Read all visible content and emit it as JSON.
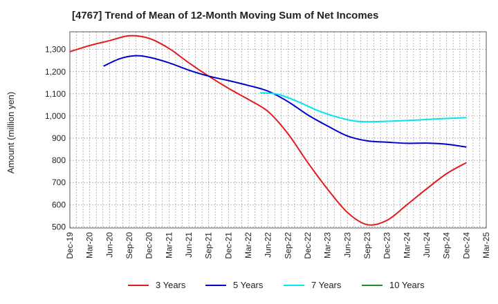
{
  "title": "[4767]  Trend of Mean of 12-Month Moving Sum of Net Incomes",
  "chart_data": {
    "type": "line",
    "ylabel": "Amount (million yen)",
    "xlabel": "",
    "ylim": [
      495,
      1380
    ],
    "yticks": [
      500,
      600,
      700,
      800,
      900,
      1000,
      1100,
      1200,
      1300
    ],
    "ytick_labels": [
      "500",
      "600",
      "700",
      "800",
      "900",
      "1,000",
      "1,100",
      "1,200",
      "1,300"
    ],
    "xtick_labels": [
      "Dec-19",
      "Mar-20",
      "Jun-20",
      "Sep-20",
      "Dec-20",
      "Mar-21",
      "Jun-21",
      "Sep-21",
      "Dec-21",
      "Mar-22",
      "Jun-22",
      "Sep-22",
      "Dec-22",
      "Mar-23",
      "Jun-23",
      "Sep-23",
      "Dec-23",
      "Mar-24",
      "Jun-24",
      "Sep-24",
      "Dec-24",
      "Mar-25"
    ],
    "grid": true,
    "series": [
      {
        "name": "3 Years",
        "color": "#e31a1c",
        "points": [
          [
            0,
            1290
          ],
          [
            1,
            1318
          ],
          [
            2,
            1340
          ],
          [
            3,
            1362
          ],
          [
            4,
            1350
          ],
          [
            5,
            1305
          ],
          [
            6,
            1240
          ],
          [
            7,
            1180
          ],
          [
            8,
            1125
          ],
          [
            9,
            1075
          ],
          [
            10,
            1020
          ],
          [
            11,
            920
          ],
          [
            12,
            790
          ],
          [
            13,
            670
          ],
          [
            14,
            565
          ],
          [
            15,
            510
          ],
          [
            16,
            530
          ],
          [
            17,
            600
          ],
          [
            18,
            672
          ],
          [
            19,
            740
          ],
          [
            20,
            790
          ]
        ]
      },
      {
        "name": "5 Years",
        "color": "#0000cc",
        "points": [
          [
            1.7,
            1225
          ],
          [
            2.5,
            1258
          ],
          [
            3.3,
            1272
          ],
          [
            4,
            1265
          ],
          [
            5,
            1240
          ],
          [
            6,
            1207
          ],
          [
            7,
            1180
          ],
          [
            8,
            1160
          ],
          [
            9,
            1138
          ],
          [
            10,
            1112
          ],
          [
            11,
            1065
          ],
          [
            12,
            1005
          ],
          [
            13,
            955
          ],
          [
            14,
            910
          ],
          [
            15,
            888
          ],
          [
            16,
            882
          ],
          [
            17,
            877
          ],
          [
            18,
            878
          ],
          [
            19,
            873
          ],
          [
            20,
            860
          ]
        ]
      },
      {
        "name": "7 Years",
        "color": "#00e5ee",
        "points": [
          [
            9.6,
            1105
          ],
          [
            10.5,
            1098
          ],
          [
            11.5,
            1065
          ],
          [
            12.5,
            1025
          ],
          [
            13.5,
            995
          ],
          [
            14.5,
            976
          ],
          [
            15.5,
            975
          ],
          [
            16.5,
            978
          ],
          [
            17.5,
            982
          ],
          [
            18.5,
            987
          ],
          [
            19.5,
            991
          ],
          [
            20,
            993
          ]
        ]
      },
      {
        "name": "10 Years",
        "color": "#228b22",
        "points": []
      }
    ]
  }
}
